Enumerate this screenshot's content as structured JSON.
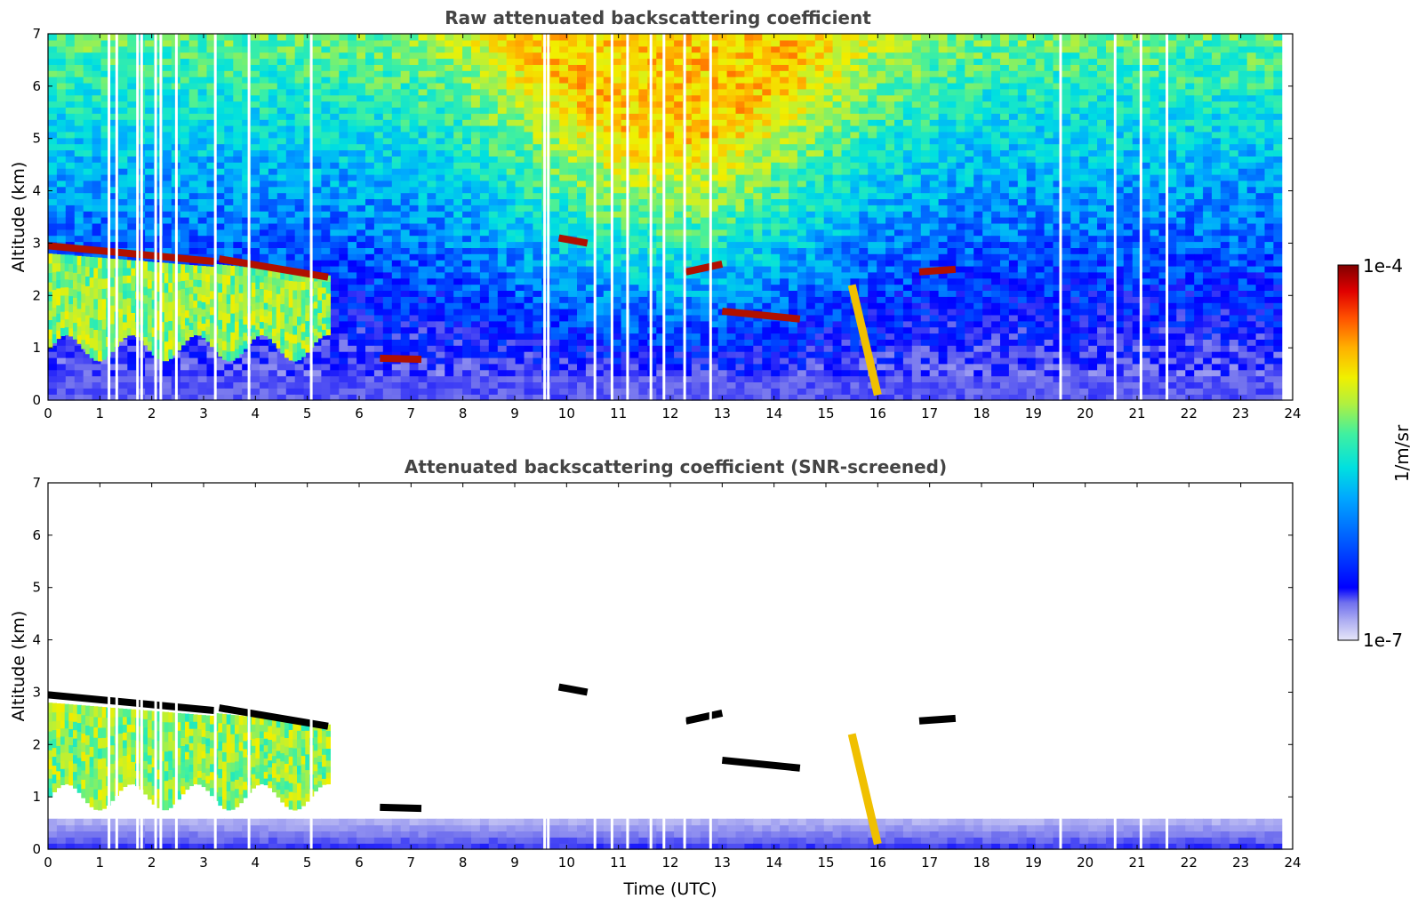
{
  "chart_data": [
    {
      "type": "heatmap",
      "title": "Raw attenuated backscattering coefficient",
      "xlabel": "",
      "ylabel": "Altitude (km)",
      "xlim": [
        0,
        24
      ],
      "ylim": [
        0,
        7
      ],
      "xticks": [
        "0",
        "1",
        "2",
        "3",
        "4",
        "5",
        "6",
        "7",
        "8",
        "9",
        "10",
        "11",
        "12",
        "13",
        "14",
        "15",
        "16",
        "17",
        "18",
        "19",
        "20",
        "21",
        "22",
        "23",
        "24"
      ],
      "yticks": [
        "0",
        "1",
        "2",
        "3",
        "4",
        "5",
        "6",
        "7"
      ],
      "data_end_time": 23.8,
      "data_gaps_time": [
        1.15,
        1.3,
        1.7,
        1.78,
        2.05,
        2.15,
        2.45,
        3.2,
        3.85,
        5.05,
        9.55,
        9.62,
        10.52,
        10.85,
        11.15,
        11.6,
        11.85,
        12.25,
        12.75,
        19.5,
        20.55,
        21.05,
        21.55
      ],
      "layers": [
        {
          "kind": "cloud_top",
          "t0": 0.0,
          "t1": 3.2,
          "alt_start": 2.95,
          "alt_end": 2.65
        },
        {
          "kind": "cloud_top",
          "t0": 3.3,
          "t1": 5.4,
          "alt_start": 2.7,
          "alt_end": 2.35
        },
        {
          "kind": "cloud_fragment",
          "t0": 6.4,
          "t1": 7.2,
          "alt_start": 0.8,
          "alt_end": 0.78
        },
        {
          "kind": "cloud_fragment",
          "t0": 9.85,
          "t1": 10.4,
          "alt_start": 3.1,
          "alt_end": 3.0
        },
        {
          "kind": "cloud_fragment",
          "t0": 12.3,
          "t1": 13.0,
          "alt_start": 2.45,
          "alt_end": 2.6
        },
        {
          "kind": "cloud_fragment",
          "t0": 13.0,
          "t1": 14.5,
          "alt_start": 1.7,
          "alt_end": 1.55
        },
        {
          "kind": "cloud_fragment",
          "t0": 16.8,
          "t1": 17.5,
          "alt_start": 2.45,
          "alt_end": 2.5
        },
        {
          "kind": "virga",
          "t0": 15.5,
          "t1": 16.0,
          "alt_start": 2.2,
          "alt_end": 0.1
        }
      ]
    },
    {
      "type": "heatmap",
      "title": "Attenuated backscattering coefficient (SNR-screened)",
      "xlabel": "Time (UTC)",
      "ylabel": "Altitude (km)",
      "xlim": [
        0,
        24
      ],
      "ylim": [
        0,
        7
      ],
      "xticks": [
        "0",
        "1",
        "2",
        "3",
        "4",
        "5",
        "6",
        "7",
        "8",
        "9",
        "10",
        "11",
        "12",
        "13",
        "14",
        "15",
        "16",
        "17",
        "18",
        "19",
        "20",
        "21",
        "22",
        "23",
        "24"
      ],
      "yticks": [
        "0",
        "1",
        "2",
        "3",
        "4",
        "5",
        "6",
        "7"
      ],
      "data_end_time": 23.8,
      "screened_color": "#ffffff",
      "saturated_color": "#000000"
    }
  ],
  "colorbar": {
    "label": "1/m/sr",
    "max_label": "1e-4",
    "min_label": "1e-7",
    "scale": "log",
    "colormap": [
      "#e6e6f8",
      "#b0b0f2",
      "#7070ee",
      "#0000ff",
      "#0050ff",
      "#00a8ff",
      "#00e0e0",
      "#40f0a0",
      "#b0f040",
      "#f0f000",
      "#ffb000",
      "#ff5000",
      "#e00000",
      "#800000"
    ]
  }
}
